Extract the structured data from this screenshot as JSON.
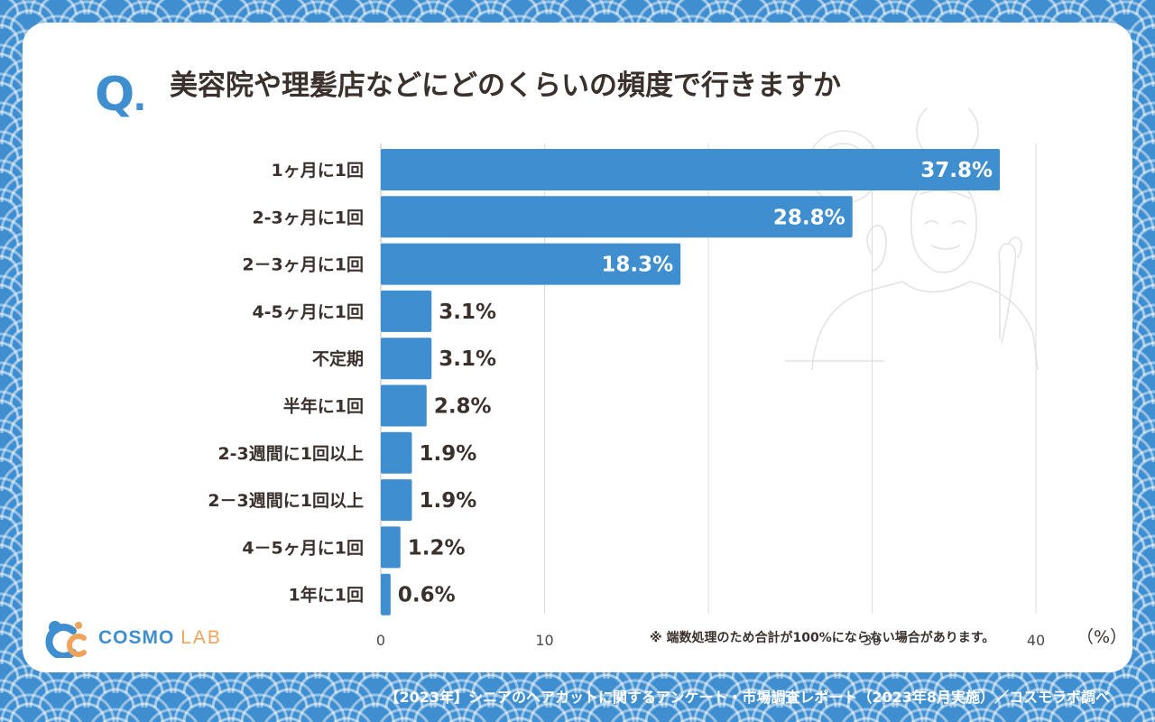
{
  "question": {
    "mark": "Q",
    "mark_dot": ".",
    "title": "美容院や理髪店などにどのくらいの頻度で行きますか"
  },
  "chart_data": {
    "type": "bar",
    "orientation": "horizontal",
    "title": "美容院や理髪店などにどのくらいの頻度で行きますか",
    "categories": [
      "1ヶ月に1回",
      "2-3ヶ月に1回",
      "2－3ヶ月に1回",
      "4-5ヶ月に1回",
      "不定期",
      "半年に1回",
      "2-3週間に1回以上",
      "2－3週間に1回以上",
      "4－5ヶ月に1回",
      "1年に1回"
    ],
    "values": [
      37.8,
      28.8,
      18.3,
      3.1,
      3.1,
      2.8,
      1.9,
      1.9,
      1.2,
      0.6
    ],
    "value_labels": [
      "37.8%",
      "28.8%",
      "18.3%",
      "3.1%",
      "3.1%",
      "2.8%",
      "1.9%",
      "1.9%",
      "1.2%",
      "0.6%"
    ],
    "xlim": [
      0,
      40
    ],
    "x_ticks": [
      0,
      10,
      20,
      30,
      40
    ],
    "x_tick_labels": [
      "0",
      "10",
      "",
      "30",
      "40"
    ],
    "unit": "（%）",
    "grid": true,
    "bar_color": "#3f8fd0"
  },
  "note": "※ 端数処理のため合計が100%にならない場合があります。",
  "logo": {
    "name": "COSMO",
    "suffix": "LAB"
  },
  "footer": "【2023年】シニアのヘアカットに関するアンケート・市場調査レポート（2023年8月実施）／コスモラボ調べ",
  "colors": {
    "accent": "#3f8fd0",
    "text": "#3a302c",
    "logo_accent": "#f0a35a",
    "background": "#3f8fd0"
  }
}
